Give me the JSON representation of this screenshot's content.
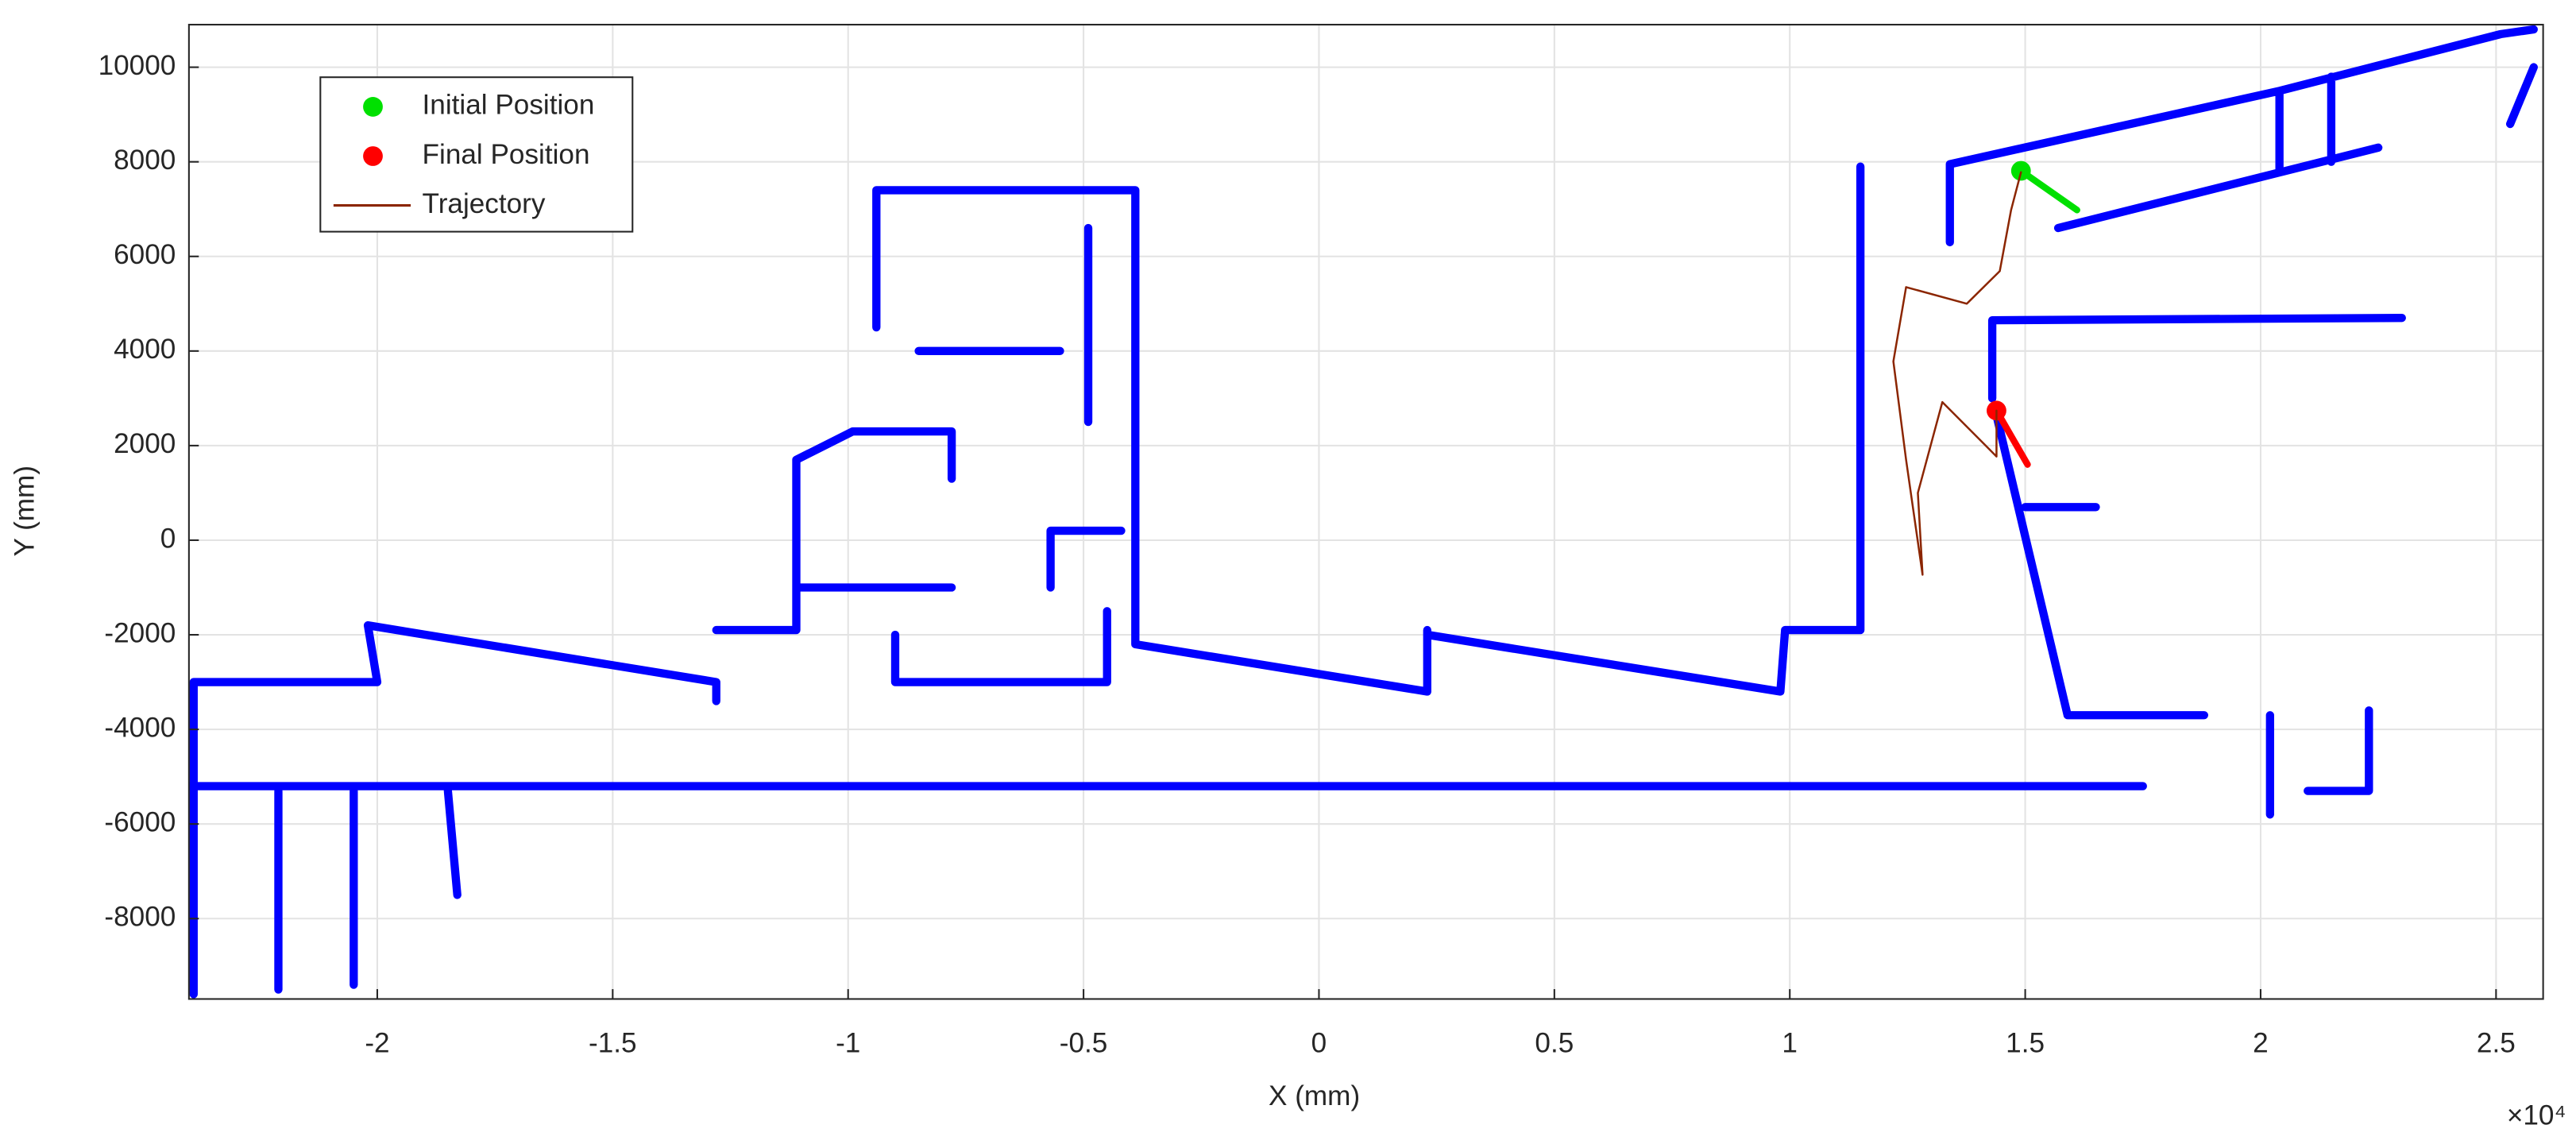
{
  "chart_data": {
    "type": "line",
    "x_label": "X (mm)",
    "y_label": "Y (mm)",
    "x_multiplier": "×10⁴",
    "xlim": [
      -24000,
      26000
    ],
    "ylim": [
      -9700,
      10900
    ],
    "xticks": [
      {
        "value": -20000,
        "label": "-2"
      },
      {
        "value": -15000,
        "label": "-1.5"
      },
      {
        "value": -10000,
        "label": "-1"
      },
      {
        "value": -5000,
        "label": "-0.5"
      },
      0,
      {
        "value": 5000,
        "label": "0.5"
      },
      {
        "value": 10000,
        "label": "1"
      },
      {
        "value": 15000,
        "label": "1.5"
      },
      {
        "value": 20000,
        "label": "2"
      },
      {
        "value": 25000,
        "label": "2.5"
      }
    ],
    "yticks": [
      -8000,
      -6000,
      -4000,
      -2000,
      0,
      2000,
      4000,
      6000,
      8000,
      10000
    ],
    "grid": true,
    "legend": "upper left",
    "series": [
      {
        "color": "#0000ff",
        "line_width": 5,
        "x": [
          -24000,
          17500,
          null,
          -23900,
          -23900,
          -20000,
          -20200,
          -12800,
          -12800,
          null,
          -12800,
          -11100,
          -11100,
          -9900,
          -7800,
          -7800,
          null,
          -11100,
          -7800,
          null,
          -9400,
          -9400,
          -3900,
          -3900,
          2300,
          2300,
          null,
          2300,
          9800,
          9900,
          11500,
          11500,
          null,
          -4900,
          -4900,
          null,
          -5700,
          -5700,
          -4200,
          null,
          -8500,
          -5500,
          null,
          -9000,
          -9000,
          -4500,
          -4500,
          null,
          13400,
          13400,
          20400,
          25100,
          25800,
          null,
          15700,
          22500,
          null,
          20400,
          20400,
          null,
          21500,
          21500,
          null,
          14300,
          14300,
          23000,
          null,
          14400,
          15900,
          18800,
          null,
          20200,
          20200,
          null,
          22300,
          22300,
          21000,
          null,
          -22100,
          -22100,
          null,
          -20500,
          -20500,
          null,
          -18500,
          -18300,
          null,
          15000,
          16500,
          null,
          25300,
          25800
        ],
        "y": [
          -5200,
          -5200,
          null,
          -9600,
          -3000,
          -3000,
          -1800,
          -3000,
          -3400,
          null,
          -1900,
          -1900,
          1700,
          2300,
          2300,
          1300,
          null,
          -1000,
          -1000,
          null,
          4500,
          7400,
          7400,
          -2200,
          -3200,
          -1900,
          null,
          -2000,
          -3200,
          -1900,
          -1900,
          7900,
          null,
          6600,
          2500,
          null,
          -1000,
          200,
          200,
          null,
          4000,
          4000,
          null,
          -2000,
          -3000,
          -3000,
          -1500,
          null,
          6300,
          7950,
          9500,
          10700,
          10800,
          null,
          6600,
          8300,
          null,
          9500,
          7800,
          null,
          9800,
          8000,
          null,
          3000,
          4650,
          4700,
          null,
          2600,
          -3700,
          -3700,
          null,
          -3700,
          -5800,
          null,
          -3600,
          -5300,
          -5300,
          null,
          -5300,
          -9500,
          null,
          -5300,
          -9400,
          null,
          -5300,
          -7500,
          null,
          700,
          700,
          null,
          8800,
          10000
        ]
      },
      {
        "name": "Initial Position",
        "color": "#00e000",
        "marker": true,
        "x": [
          14910,
          16100
        ],
        "y": [
          7810,
          6980
        ]
      },
      {
        "name": "Final Position",
        "color": "#ff0000",
        "marker": true,
        "x": [
          14390,
          15050
        ],
        "y": [
          2740,
          1600
        ]
      },
      {
        "name": "Trajectory",
        "color": "#8b2500",
        "line_width": 1.2,
        "x": [
          14910,
          14700,
          14460,
          13760,
          12470,
          12200,
          12470,
          12820,
          12720,
          13240,
          14110,
          14390,
          14390
        ],
        "y": [
          7780,
          6980,
          5690,
          5000,
          5350,
          3780,
          1700,
          -730,
          1000,
          2920,
          2050,
          1770,
          2740
        ]
      }
    ]
  }
}
